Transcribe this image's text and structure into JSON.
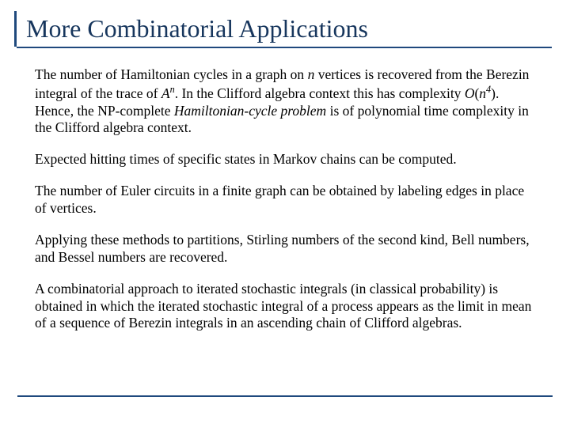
{
  "colors": {
    "accent": "#1f497d",
    "title_text": "#17365d",
    "body_text": "#000000",
    "background": "#ffffff"
  },
  "typography": {
    "family": "Times New Roman",
    "title_fontsize_pt": 32,
    "body_fontsize_pt": 17.5,
    "body_line_height": 1.25
  },
  "title": "More Combinatorial Applications",
  "paragraphs": {
    "p1": {
      "t1": "The number of Hamiltonian cycles in a graph on ",
      "n1": "n",
      "t2": " vertices is recovered from the Berezin integral of the trace of ",
      "An_A": "A",
      "An_n": "n",
      "t3": ".   In the Clifford algebra context this has complexity ",
      "O": "O",
      "lp": "(",
      "n4_n": "n",
      "n4_4": "4",
      "rp": ")",
      "t4": ".  Hence, the NP-complete ",
      "hcp": "Hamiltonian-cycle problem",
      "t5": " is of polynomial time complexity in the Clifford algebra context."
    },
    "p2": "Expected hitting times of specific states in Markov chains can be computed.",
    "p3": "The number of Euler circuits in a finite graph can be obtained by labeling edges in place of vertices.",
    "p4": "Applying these methods to partitions, Stirling numbers of the second kind, Bell numbers, and Bessel numbers are recovered.",
    "p5": "A combinatorial approach to iterated stochastic integrals (in classical probability) is obtained in which the iterated stochastic integral of a process appears as the limit in mean of a sequence of Berezin integrals in an ascending chain of Clifford algebras."
  }
}
